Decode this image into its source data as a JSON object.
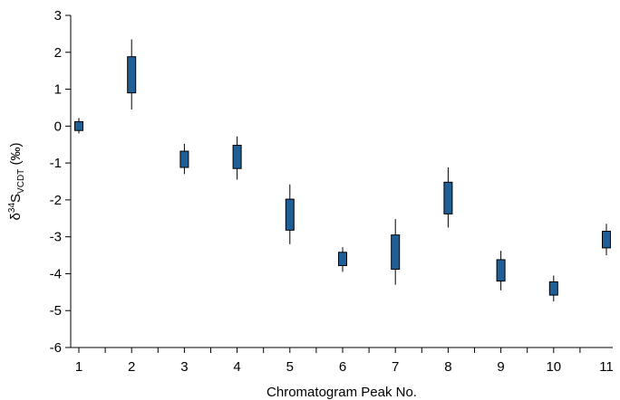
{
  "chart_data": {
    "type": "box",
    "title": "",
    "xlabel": "Chromatogram Peak No.",
    "ylabel": {
      "prefix": "δ",
      "superscript": "34",
      "main": "S",
      "subscript": "VCDT",
      "suffix": " (‰)"
    },
    "ylim": [
      -6,
      3
    ],
    "yticks": [
      "3",
      "2",
      "1",
      "0",
      "-1",
      "-2",
      "-3",
      "-4",
      "-5",
      "-6"
    ],
    "xlim": [
      1,
      11
    ],
    "xticks": [
      "1",
      "2",
      "3",
      "4",
      "5",
      "6",
      "7",
      "8",
      "9",
      "10",
      "11"
    ],
    "grid": false,
    "box_color": "#1f5f95",
    "series": [
      {
        "x": [
          1,
          2,
          3,
          4,
          5,
          6,
          7,
          8,
          9,
          10,
          11
        ],
        "whisker_low": [
          -0.2,
          0.45,
          -1.3,
          -1.45,
          -3.2,
          -3.95,
          -4.3,
          -2.75,
          -4.45,
          -4.75,
          -3.5
        ],
        "box_low": [
          -0.12,
          0.9,
          -1.12,
          -1.15,
          -2.82,
          -3.78,
          -3.88,
          -2.38,
          -4.2,
          -4.58,
          -3.3
        ],
        "box_high": [
          0.12,
          1.88,
          -0.68,
          -0.52,
          -1.98,
          -3.42,
          -2.95,
          -1.52,
          -3.62,
          -4.22,
          -2.85
        ],
        "whisker_high": [
          0.22,
          2.35,
          -0.48,
          -0.28,
          -1.58,
          -3.28,
          -2.52,
          -1.12,
          -3.38,
          -4.05,
          -2.65
        ]
      }
    ]
  }
}
